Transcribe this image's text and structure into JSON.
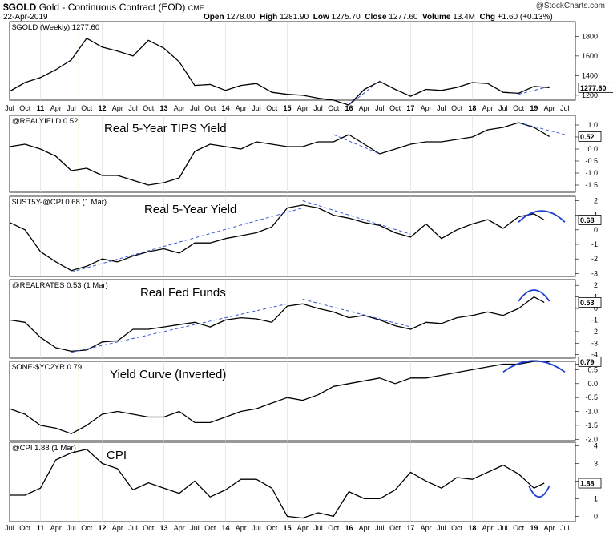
{
  "header": {
    "symbol": "$GOLD",
    "description": "Gold - Continuous Contract (EOD)",
    "exchange": "CME",
    "date": "22-Apr-2019",
    "watermark": "@StockCharts.com",
    "quote": {
      "open_label": "Open",
      "open": "1278.00",
      "high_label": "High",
      "high": "1281.90",
      "low_label": "Low",
      "low": "1275.70",
      "close_label": "Close",
      "close": "1277.60",
      "volume_label": "Volume",
      "volume": "13.4M",
      "chg_label": "Chg",
      "chg": "+1.60 (+0.13%)"
    }
  },
  "x_axis": {
    "labels": [
      "Jul",
      "Oct",
      "11",
      "Apr",
      "Jul",
      "Oct",
      "12",
      "Apr",
      "Jul",
      "Oct",
      "13",
      "Apr",
      "Jul",
      "Oct",
      "14",
      "Apr",
      "Jul",
      "Oct",
      "15",
      "Apr",
      "Jul",
      "Oct",
      "16",
      "Apr",
      "Jul",
      "Oct",
      "17",
      "Apr",
      "Jul",
      "Oct",
      "18",
      "Apr",
      "Jul",
      "Oct",
      "19",
      "Apr",
      "Jul"
    ],
    "year_labels": [
      "11",
      "12",
      "13",
      "14",
      "15",
      "16",
      "17",
      "18",
      "19"
    ]
  },
  "colors": {
    "line": "#000000",
    "trend": "#3a57d6",
    "arc": "#1c3fd1",
    "marker": "#c9c96a",
    "grid": "#d9d9d9",
    "value_box": "#ffffff"
  },
  "chart_data": [
    {
      "type": "line",
      "panel_label": "$GOLD (Weekly) 1277.60",
      "title": "",
      "last_value": "1277.60",
      "ylim": [
        1150,
        1950
      ],
      "yticks": [
        "1200",
        "1400",
        "1600",
        "1800"
      ],
      "x": [
        "2010-07",
        "2010-10",
        "2011-01",
        "2011-04",
        "2011-07",
        "2011-10",
        "2012-01",
        "2012-04",
        "2012-07",
        "2012-10",
        "2013-01",
        "2013-04",
        "2013-07",
        "2013-10",
        "2014-01",
        "2014-04",
        "2014-07",
        "2014-10",
        "2015-01",
        "2015-04",
        "2015-07",
        "2015-10",
        "2016-01",
        "2016-04",
        "2016-07",
        "2016-10",
        "2017-01",
        "2017-04",
        "2017-07",
        "2017-10",
        "2018-01",
        "2018-04",
        "2018-07",
        "2018-10",
        "2019-01",
        "2019-04"
      ],
      "values": [
        1240,
        1330,
        1380,
        1460,
        1560,
        1780,
        1690,
        1650,
        1600,
        1760,
        1680,
        1540,
        1300,
        1310,
        1250,
        1300,
        1320,
        1230,
        1210,
        1200,
        1170,
        1150,
        1100,
        1260,
        1340,
        1260,
        1190,
        1260,
        1250,
        1280,
        1330,
        1320,
        1230,
        1220,
        1290,
        1277.6
      ],
      "trend_lines": [
        {
          "from": [
            "2016-01",
            1100
          ],
          "to": [
            "2016-07",
            1350
          ]
        },
        {
          "from": [
            "2018-10",
            1210
          ],
          "to": [
            "2019-04",
            1290
          ]
        }
      ]
    },
    {
      "type": "line",
      "panel_label": "@REALYIELD 0.52",
      "title": "Real 5-Year TIPS Yield",
      "last_value": "0.52",
      "ylim": [
        -1.8,
        1.4
      ],
      "yticks": [
        "1.0",
        "0.5",
        "0.0",
        "-0.5",
        "-1.0",
        "-1.5"
      ],
      "x": [
        "2010-07",
        "2010-10",
        "2011-01",
        "2011-04",
        "2011-07",
        "2011-10",
        "2012-01",
        "2012-04",
        "2012-07",
        "2012-10",
        "2013-01",
        "2013-04",
        "2013-07",
        "2013-10",
        "2014-01",
        "2014-04",
        "2014-07",
        "2014-10",
        "2015-01",
        "2015-04",
        "2015-07",
        "2015-10",
        "2016-01",
        "2016-04",
        "2016-07",
        "2016-10",
        "2017-01",
        "2017-04",
        "2017-07",
        "2017-10",
        "2018-01",
        "2018-04",
        "2018-07",
        "2018-10",
        "2019-01",
        "2019-04"
      ],
      "values": [
        0.1,
        0.2,
        0.0,
        -0.3,
        -0.9,
        -0.8,
        -1.1,
        -1.1,
        -1.3,
        -1.5,
        -1.4,
        -1.2,
        -0.1,
        0.2,
        0.1,
        0.0,
        0.3,
        0.2,
        0.1,
        0.1,
        0.3,
        0.3,
        0.6,
        0.2,
        -0.2,
        0.0,
        0.2,
        0.3,
        0.3,
        0.4,
        0.5,
        0.8,
        0.9,
        1.1,
        0.9,
        0.52
      ],
      "trend_lines": [
        {
          "from": [
            "2015-10",
            0.6
          ],
          "to": [
            "2016-07",
            -0.2
          ]
        },
        {
          "from": [
            "2018-10",
            1.1
          ],
          "to": [
            "2019-07",
            0.6
          ]
        }
      ]
    },
    {
      "type": "line",
      "panel_label": "$UST5Y-@CPI 0.68 (1 Mar)",
      "title": "Real 5-Year Yield",
      "last_value": "0.68",
      "ylim": [
        -3.2,
        2.3
      ],
      "yticks": [
        "2",
        "1",
        "0",
        "-1",
        "-2",
        "-3"
      ],
      "x": [
        "2010-07",
        "2010-10",
        "2011-01",
        "2011-04",
        "2011-07",
        "2011-10",
        "2012-01",
        "2012-04",
        "2012-07",
        "2012-10",
        "2013-01",
        "2013-04",
        "2013-07",
        "2013-10",
        "2014-01",
        "2014-04",
        "2014-07",
        "2014-10",
        "2015-01",
        "2015-04",
        "2015-07",
        "2015-10",
        "2016-01",
        "2016-04",
        "2016-07",
        "2016-10",
        "2017-01",
        "2017-04",
        "2017-07",
        "2017-10",
        "2018-01",
        "2018-04",
        "2018-07",
        "2018-10",
        "2019-01",
        "2019-03"
      ],
      "values": [
        0.5,
        0.0,
        -1.5,
        -2.2,
        -2.8,
        -2.5,
        -2.0,
        -2.2,
        -1.8,
        -1.5,
        -1.3,
        -1.6,
        -0.9,
        -0.9,
        -0.6,
        -0.4,
        -0.2,
        0.2,
        1.5,
        1.7,
        1.5,
        1.0,
        0.8,
        0.5,
        0.3,
        -0.2,
        -0.5,
        0.4,
        -0.6,
        0.0,
        0.4,
        0.7,
        0.1,
        0.9,
        1.1,
        0.68
      ],
      "trend_lines": [
        {
          "from": [
            "2011-07",
            -2.9
          ],
          "to": [
            "2015-04",
            1.5
          ]
        },
        {
          "from": [
            "2015-04",
            2.0
          ],
          "to": [
            "2017-01",
            -0.3
          ]
        }
      ],
      "arc": {
        "from": "2018-10",
        "to": "2019-07",
        "peak": 1.3
      }
    },
    {
      "type": "line",
      "panel_label": "@REALRATES 0.53 (1 Mar)",
      "title": "Real Fed Funds",
      "last_value": "0.53",
      "ylim": [
        -4.3,
        2.5
      ],
      "yticks": [
        "2",
        "1",
        "0",
        "-1",
        "-2",
        "-3",
        "-4"
      ],
      "x": [
        "2010-07",
        "2010-10",
        "2011-01",
        "2011-04",
        "2011-07",
        "2011-10",
        "2012-01",
        "2012-04",
        "2012-07",
        "2012-10",
        "2013-01",
        "2013-04",
        "2013-07",
        "2013-10",
        "2014-01",
        "2014-04",
        "2014-07",
        "2014-10",
        "2015-01",
        "2015-04",
        "2015-07",
        "2015-10",
        "2016-01",
        "2016-04",
        "2016-07",
        "2016-10",
        "2017-01",
        "2017-04",
        "2017-07",
        "2017-10",
        "2018-01",
        "2018-04",
        "2018-07",
        "2018-10",
        "2019-01",
        "2019-03"
      ],
      "values": [
        -1.0,
        -1.2,
        -2.5,
        -3.4,
        -3.7,
        -3.6,
        -2.9,
        -2.8,
        -1.8,
        -1.8,
        -1.6,
        -1.4,
        -1.2,
        -1.6,
        -1.0,
        -0.8,
        -0.9,
        -1.2,
        0.2,
        0.4,
        0.0,
        -0.3,
        -0.8,
        -0.6,
        -1.0,
        -1.5,
        -1.8,
        -1.2,
        -1.3,
        -0.8,
        -0.6,
        -0.3,
        -0.6,
        0.0,
        1.0,
        0.53
      ],
      "trend_lines": [
        {
          "from": [
            "2011-07",
            -3.8
          ],
          "to": [
            "2015-01",
            0.4
          ]
        },
        {
          "from": [
            "2015-04",
            0.8
          ],
          "to": [
            "2017-01",
            -1.6
          ]
        }
      ],
      "arc": {
        "from": "2018-10",
        "to": "2019-04",
        "peak": 1.6
      }
    },
    {
      "type": "line",
      "panel_label": "$ONE-$YC2YR 0.79",
      "title": "Yield Curve (Inverted)",
      "last_value": "0.79",
      "ylim": [
        -2.05,
        0.8
      ],
      "yticks": [
        "0.7",
        "0.5",
        "0.0",
        "-0.5",
        "-1.0",
        "-1.5",
        "-2.0"
      ],
      "x": [
        "2010-07",
        "2010-10",
        "2011-01",
        "2011-04",
        "2011-07",
        "2011-10",
        "2012-01",
        "2012-04",
        "2012-07",
        "2012-10",
        "2013-01",
        "2013-04",
        "2013-07",
        "2013-10",
        "2014-01",
        "2014-04",
        "2014-07",
        "2014-10",
        "2015-01",
        "2015-04",
        "2015-07",
        "2015-10",
        "2016-01",
        "2016-04",
        "2016-07",
        "2016-10",
        "2017-01",
        "2017-04",
        "2017-07",
        "2017-10",
        "2018-01",
        "2018-04",
        "2018-07",
        "2018-10",
        "2019-01",
        "2019-04"
      ],
      "values": [
        -0.9,
        -1.1,
        -1.5,
        -1.6,
        -1.8,
        -1.5,
        -1.1,
        -1.0,
        -1.1,
        -1.2,
        -1.2,
        -1.0,
        -1.4,
        -1.4,
        -1.2,
        -1.0,
        -0.9,
        -0.7,
        -0.5,
        -0.6,
        -0.4,
        -0.1,
        0.0,
        0.1,
        0.2,
        0.0,
        0.2,
        0.2,
        0.3,
        0.4,
        0.5,
        0.6,
        0.7,
        0.7,
        0.8,
        0.79
      ],
      "arc": {
        "from": "2018-07",
        "to": "2019-07",
        "peak": 0.82
      }
    },
    {
      "type": "line",
      "panel_label": "@CPI 1.88 (1 Mar)",
      "title": "CPI",
      "last_value": "1.88",
      "ylim": [
        -0.3,
        4.2
      ],
      "yticks": [
        "4",
        "3",
        "2",
        "1",
        "0"
      ],
      "x": [
        "2010-07",
        "2010-10",
        "2011-01",
        "2011-04",
        "2011-07",
        "2011-10",
        "2012-01",
        "2012-04",
        "2012-07",
        "2012-10",
        "2013-01",
        "2013-04",
        "2013-07",
        "2013-10",
        "2014-01",
        "2014-04",
        "2014-07",
        "2014-10",
        "2015-01",
        "2015-04",
        "2015-07",
        "2015-10",
        "2016-01",
        "2016-04",
        "2016-07",
        "2016-10",
        "2017-01",
        "2017-04",
        "2017-07",
        "2017-10",
        "2018-01",
        "2018-04",
        "2018-07",
        "2018-10",
        "2019-01",
        "2019-03"
      ],
      "values": [
        1.2,
        1.2,
        1.6,
        3.2,
        3.6,
        3.8,
        3.0,
        2.7,
        1.5,
        1.9,
        1.6,
        1.3,
        2.0,
        1.1,
        1.5,
        2.1,
        2.1,
        1.6,
        0.0,
        -0.1,
        0.2,
        0.0,
        1.4,
        1.0,
        1.0,
        1.5,
        2.5,
        2.0,
        1.6,
        2.2,
        2.1,
        2.5,
        2.9,
        2.4,
        1.6,
        1.88
      ],
      "arc": {
        "from": "2018-12",
        "to": "2019-04",
        "peak": 1.1,
        "inverted": true
      }
    }
  ]
}
